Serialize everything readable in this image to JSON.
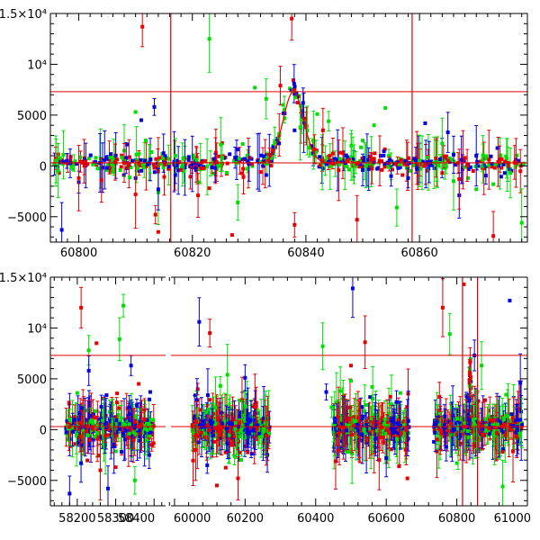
{
  "chart_data": [
    {
      "type": "scatter",
      "name": "zoom-panel",
      "title": "",
      "xlabel": "",
      "ylabel": "",
      "xlim": [
        60795,
        60879
      ],
      "ylim": [
        -7500,
        15000
      ],
      "x_ticks": [
        {
          "value": 60800,
          "label": "60800"
        },
        {
          "value": 60820,
          "label": "60820"
        },
        {
          "value": 60840,
          "label": "60840"
        },
        {
          "value": 60860,
          "label": "60860"
        }
      ],
      "y_ticks": [
        {
          "value": 15000,
          "label": "1.5×10⁴"
        },
        {
          "value": 10000,
          "label": "10⁴"
        },
        {
          "value": 5000,
          "label": "5000"
        },
        {
          "value": 0,
          "label": "0"
        },
        {
          "value": -5000,
          "label": "−5000"
        }
      ],
      "hlines": [
        7300,
        300
      ],
      "vlines": [
        60816.2,
        60858.7
      ],
      "peak_model": {
        "center": 60837.8,
        "amplitude": 7000,
        "sigma": 1.8,
        "baseline": 300
      },
      "band_color": {
        "green": "#00e000",
        "blue": "#0000e0",
        "red": "#e80000",
        "line": "#e00000"
      },
      "series": [
        {
          "name": "green",
          "points": [
            [
              60796,
              500
            ],
            [
              60799,
              -300
            ],
            [
              60803,
              800
            ],
            [
              60806,
              -600
            ],
            [
              60808,
              1500
            ],
            [
              60810,
              5300
            ],
            [
              60810.6,
              1200
            ],
            [
              60811.8,
              2500
            ],
            [
              60814,
              -2600
            ],
            [
              60817,
              1000
            ],
            [
              60823,
              12500
            ],
            [
              60825,
              2100
            ],
            [
              60828,
              -3600
            ],
            [
              60831,
              7700
            ],
            [
              60833,
              6600
            ],
            [
              60834.5,
              2300
            ],
            [
              60836,
              6000
            ],
            [
              60839,
              3800
            ],
            [
              60842,
              5100
            ],
            [
              60844,
              4400
            ],
            [
              60846,
              700
            ],
            [
              60848,
              2000
            ],
            [
              60850,
              2500
            ],
            [
              60852,
              4000
            ],
            [
              60854,
              5700
            ],
            [
              60856,
              -4100
            ],
            [
              60860,
              500
            ],
            [
              60864,
              2200
            ],
            [
              60866,
              -1500
            ],
            [
              60870,
              -2300
            ],
            [
              60873,
              -1800
            ],
            [
              60876,
              -700
            ],
            [
              60878,
              -5600
            ]
          ]
        },
        {
          "name": "blue",
          "points": [
            [
              60797,
              -6300
            ],
            [
              60800,
              -1600
            ],
            [
              60805,
              -200
            ],
            [
              60808.5,
              2100
            ],
            [
              60810,
              -1200
            ],
            [
              60811,
              4500
            ],
            [
              60813.3,
              5800
            ],
            [
              60814,
              -2300
            ],
            [
              60817,
              -900
            ],
            [
              60820,
              200
            ],
            [
              60824,
              -200
            ],
            [
              60830,
              200
            ],
            [
              60833,
              -900
            ],
            [
              60838,
              3500
            ],
            [
              60839.5,
              6200
            ],
            [
              60844,
              400
            ],
            [
              60850,
              -400
            ],
            [
              60855,
              -1000
            ],
            [
              60858,
              -1200
            ],
            [
              60861,
              4200
            ],
            [
              60865,
              3300
            ],
            [
              60866,
              1100
            ],
            [
              60867,
              -2900
            ],
            [
              60870,
              1000
            ],
            [
              60875,
              -700
            ]
          ]
        },
        {
          "name": "red",
          "points": [
            [
              60800,
              -1200
            ],
            [
              60804,
              -1400
            ],
            [
              60808,
              300
            ],
            [
              60810,
              -2800
            ],
            [
              60811.2,
              13700
            ],
            [
              60813.5,
              -4800
            ],
            [
              60814,
              -6500
            ],
            [
              60818,
              -400
            ],
            [
              60821,
              -2900
            ],
            [
              60823,
              -2200
            ],
            [
              60827,
              -6800
            ],
            [
              60829,
              -1100
            ],
            [
              60832,
              -600
            ],
            [
              60835.5,
              7900
            ],
            [
              60837.5,
              14500
            ],
            [
              60838,
              -5800
            ],
            [
              60843,
              3500
            ],
            [
              60846,
              1300
            ],
            [
              60849,
              -5300
            ],
            [
              60853,
              500
            ],
            [
              60857,
              -900
            ],
            [
              60864,
              -700
            ],
            [
              60867,
              -1300
            ],
            [
              60873,
              -6900
            ],
            [
              60877,
              300
            ]
          ]
        }
      ]
    },
    {
      "type": "scatter",
      "name": "overview-panel",
      "title": "",
      "xlabel": "",
      "ylabel": "",
      "segments": [
        {
          "xlim": [
            58130,
            58430
          ],
          "ticks": [
            {
              "value": 58200,
              "label": "58200"
            },
            {
              "value": 58300,
              "label": "58300"
            },
            {
              "value": 58400,
              "label": "58400"
            }
          ]
        },
        {
          "xlim": [
            59990,
            61000
          ],
          "ticks": [
            {
              "value": 60000,
              "label": "60000"
            },
            {
              "value": 60200,
              "label": "60200"
            },
            {
              "value": 60400,
              "label": "60400"
            },
            {
              "value": 60600,
              "label": "60600"
            },
            {
              "value": 60800,
              "label": "60800"
            },
            {
              "value": 61000,
              "label": "61000"
            }
          ]
        }
      ],
      "ylim": [
        -7500,
        15000
      ],
      "y_ticks": [
        {
          "value": 15000,
          "label": "1.5×10⁴"
        },
        {
          "value": 10000,
          "label": "10⁴"
        },
        {
          "value": 5000,
          "label": "5000"
        },
        {
          "value": 0,
          "label": "0"
        },
        {
          "value": -5000,
          "label": "−5000"
        }
      ],
      "hlines": [
        7300,
        300
      ],
      "vlines": [
        60816.2,
        60858.7
      ],
      "season_ranges": [
        [
          58170,
          58400
        ],
        [
          60050,
          60270
        ],
        [
          60450,
          60665
        ],
        [
          60735,
          60985
        ]
      ],
      "series": [
        {
          "name": "green",
          "points": [
            [
              58230,
              7800
            ],
            [
              58320,
              12200
            ],
            [
              58310,
              8900
            ],
            [
              58200,
              3600
            ],
            [
              58350,
              -5000
            ],
            [
              60090,
              1700
            ],
            [
              60130,
              4300
            ],
            [
              60150,
              5400
            ],
            [
              60170,
              -2600
            ],
            [
              60200,
              2300
            ],
            [
              60420,
              8200
            ],
            [
              60445,
              2200
            ],
            [
              60470,
              3800
            ],
            [
              60500,
              4800
            ],
            [
              60560,
              4200
            ],
            [
              60640,
              3600
            ],
            [
              60780,
              9400
            ],
            [
              60800,
              -3300
            ],
            [
              60870,
              6300
            ],
            [
              60930,
              -5600
            ]
          ]
        },
        {
          "name": "blue",
          "points": [
            [
              58180,
              -6300
            ],
            [
              58230,
              5800
            ],
            [
              58280,
              -5800
            ],
            [
              58340,
              6300
            ],
            [
              58390,
              3700
            ],
            [
              60070,
              10600
            ],
            [
              60150,
              -1400
            ],
            [
              60200,
              5100
            ],
            [
              60430,
              3700
            ],
            [
              60505,
              13900
            ],
            [
              60600,
              -2800
            ],
            [
              60770,
              -1700
            ],
            [
              60850,
              7300
            ],
            [
              60950,
              12700
            ],
            [
              60980,
              4600
            ]
          ]
        },
        {
          "name": "red",
          "points": [
            [
              58210,
              12000
            ],
            [
              58250,
              8500
            ],
            [
              58260,
              -4000
            ],
            [
              58300,
              -3700
            ],
            [
              58360,
              4500
            ],
            [
              60060,
              -2000
            ],
            [
              60100,
              9500
            ],
            [
              60120,
              -5500
            ],
            [
              60180,
              -4800
            ],
            [
              60260,
              -600
            ],
            [
              60500,
              6300
            ],
            [
              60540,
              8600
            ],
            [
              60580,
              -3000
            ],
            [
              60660,
              -4800
            ],
            [
              60760,
              12000
            ],
            [
              60820,
              14300
            ],
            [
              60880,
              2900
            ],
            [
              60930,
              -2200
            ]
          ]
        }
      ]
    }
  ]
}
